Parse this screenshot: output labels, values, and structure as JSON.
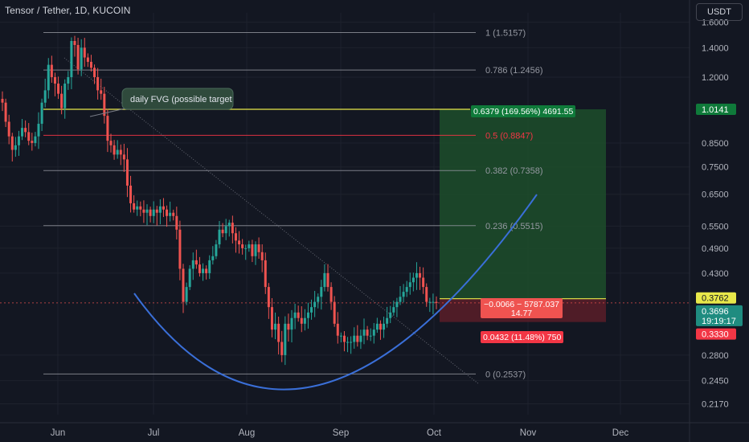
{
  "header": {
    "symbol_title": "Tensor / Tether, 1D, KUCOIN",
    "currency_button": "USDT"
  },
  "colors": {
    "background": "#131722",
    "up": "#26a69a",
    "down": "#ef5350",
    "fib_line": "#787b86",
    "fib_half": "#f23645",
    "target_line": "#e8e84a",
    "curve": "#3a6fd8",
    "profit_zone": "#1d4d2a",
    "loss_zone": "#5a1d28"
  },
  "chart_data": {
    "type": "candlestick",
    "scale": "log",
    "ylim": [
      0.205,
      1.68
    ],
    "x_ticks": [
      "Jun",
      "Jul",
      "Aug",
      "Sep",
      "Oct",
      "Nov",
      "Dec"
    ],
    "y_ticks": [
      "1.6000",
      "1.4000",
      "1.2000",
      "1.0141",
      "0.8500",
      "0.7500",
      "0.6500",
      "0.5500",
      "0.4900",
      "0.4300",
      "0.3762",
      "0.3696",
      "0.3330",
      "0.2800",
      "0.2450",
      "0.2170"
    ],
    "fib_levels": [
      {
        "ratio": 1,
        "price": 1.5157,
        "label": "1 (1.5157)"
      },
      {
        "ratio": 0.786,
        "price": 1.2456,
        "label": "0.786 (1.2456)"
      },
      {
        "ratio": 0.5,
        "price": 0.8847,
        "label": "0.5 (0.8847)"
      },
      {
        "ratio": 0.382,
        "price": 0.7358,
        "label": "0.382 (0.7358)"
      },
      {
        "ratio": 0.236,
        "price": 0.5515,
        "label": "0.236 (0.5515)"
      },
      {
        "ratio": 0,
        "price": 0.2537,
        "label": "0 (0.2537)"
      }
    ],
    "target_price": 1.0141,
    "entry_price": 0.3762,
    "last_price": 0.3696,
    "countdown": "19:19:17",
    "stop_price": 0.333,
    "annotation": "daily FVG (possible target",
    "position_labels": {
      "target": "0.6379 (169.56%) 4691.55",
      "middle_line1": "−0.0066 − 5787.037",
      "middle_line2": "14.77",
      "stop": "0.0432 (11.48%) 750"
    },
    "price_path": [
      1.05,
      0.95,
      0.88,
      0.82,
      0.84,
      0.88,
      0.92,
      0.9,
      0.86,
      0.85,
      0.88,
      0.94,
      1.05,
      1.12,
      1.28,
      1.2,
      1.16,
      1.1,
      1.02,
      1.16,
      1.2,
      1.45,
      1.42,
      1.25,
      1.4,
      1.33,
      1.3,
      1.26,
      1.2,
      1.12,
      1.1,
      0.98,
      0.86,
      0.84,
      0.8,
      0.82,
      0.8,
      0.78,
      0.68,
      0.62,
      0.6,
      0.61,
      0.6,
      0.59,
      0.6,
      0.58,
      0.6,
      0.59,
      0.61,
      0.6,
      0.58,
      0.59,
      0.58,
      0.54,
      0.44,
      0.37,
      0.4,
      0.44,
      0.46,
      0.45,
      0.43,
      0.44,
      0.43,
      0.46,
      0.47,
      0.5,
      0.54,
      0.53,
      0.55,
      0.56,
      0.53,
      0.51,
      0.5,
      0.49,
      0.49,
      0.5,
      0.47,
      0.5,
      0.48,
      0.46,
      0.4,
      0.36,
      0.32,
      0.33,
      0.3,
      0.28,
      0.33,
      0.32,
      0.34,
      0.35,
      0.34,
      0.33,
      0.34,
      0.35,
      0.36,
      0.37,
      0.38,
      0.4,
      0.43,
      0.4,
      0.37,
      0.33,
      0.31,
      0.31,
      0.3,
      0.3,
      0.3,
      0.31,
      0.3,
      0.31,
      0.32,
      0.31,
      0.31,
      0.32,
      0.33,
      0.32,
      0.33,
      0.34,
      0.35,
      0.36,
      0.37,
      0.38,
      0.39,
      0.4,
      0.41,
      0.42,
      0.43,
      0.42,
      0.4,
      0.37,
      0.37,
      0.37,
      0.368
    ]
  }
}
